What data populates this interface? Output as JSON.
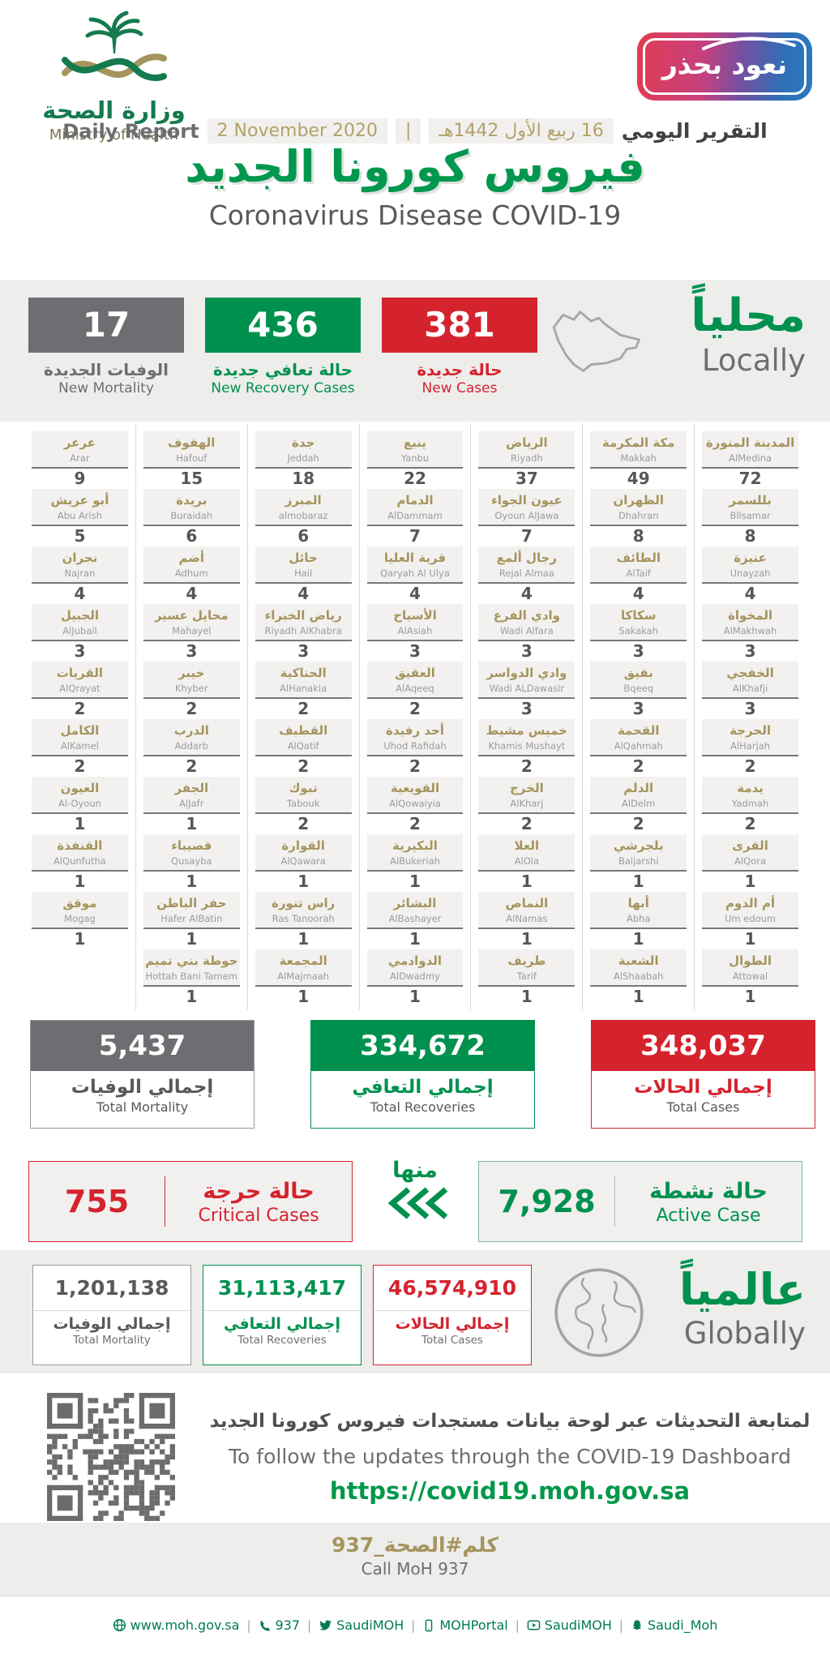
{
  "header": {
    "logo_ar": "وزارة الصحة",
    "logo_en": "Ministry of Health",
    "badge": "نعود بحذر",
    "report_label_en": "Daily Report",
    "date_gregorian": "2 November 2020",
    "date_separator": "|",
    "date_hijri": "16 ربيع الأول 1442هـ",
    "report_label_ar": "التقرير اليومي",
    "title_ar": "فيروس كورونا الجديد",
    "title_en": "Coronavirus Disease COVID-19"
  },
  "colors": {
    "green": "#00914F",
    "red": "#D5232E",
    "gray": "#6D6E71",
    "gold": "#A6945E"
  },
  "locally": {
    "label_ar": "محلياً",
    "label_en": "Locally",
    "new_mortality": {
      "value": "17",
      "label_ar": "الوفيات الجديدة",
      "label_en": "New Mortality"
    },
    "new_recoveries": {
      "value": "436",
      "label_ar": "حالة تعافي جديدة",
      "label_en": "New Recovery Cases"
    },
    "new_cases": {
      "value": "381",
      "label_ar": "حالة جديدة",
      "label_en": "New Cases"
    }
  },
  "cities_table": {
    "columns": [
      {
        "cities": [
          {
            "ar": "عرعر",
            "en": "Arar",
            "value": 9
          },
          {
            "ar": "أبو عريش",
            "en": "Abu Arish",
            "value": 5
          },
          {
            "ar": "نجران",
            "en": "Najran",
            "value": 4
          },
          {
            "ar": "الجبيل",
            "en": "AlJubail",
            "value": 3
          },
          {
            "ar": "القريات",
            "en": "AlQrayat",
            "value": 2
          },
          {
            "ar": "الكامل",
            "en": "AlKamel",
            "value": 2
          },
          {
            "ar": "العيون",
            "en": "Al-Oyoun",
            "value": 1
          },
          {
            "ar": "القنفذة",
            "en": "AlQunfutha",
            "value": 1
          },
          {
            "ar": "موقق",
            "en": "Mogag",
            "value": 1
          }
        ]
      },
      {
        "cities": [
          {
            "ar": "الهفوف",
            "en": "Hafouf",
            "value": 15
          },
          {
            "ar": "بريدة",
            "en": "Buraidah",
            "value": 6
          },
          {
            "ar": "أضم",
            "en": "Adhum",
            "value": 4
          },
          {
            "ar": "محايل عسير",
            "en": "Mahayel",
            "value": 3
          },
          {
            "ar": "خيبر",
            "en": "Khyber",
            "value": 2
          },
          {
            "ar": "الدرب",
            "en": "Addarb",
            "value": 2
          },
          {
            "ar": "الجفر",
            "en": "AlJafr",
            "value": 1
          },
          {
            "ar": "قصيباء",
            "en": "Qusayba",
            "value": 1
          },
          {
            "ar": "حفر الباطن",
            "en": "Hafer AlBatin",
            "value": 1
          },
          {
            "ar": "حوطة بني تميم",
            "en": "Hottah Bani Tamem",
            "value": 1
          }
        ]
      },
      {
        "cities": [
          {
            "ar": "جدة",
            "en": "Jeddah",
            "value": 18
          },
          {
            "ar": "المبرز",
            "en": "almobaraz",
            "value": 6
          },
          {
            "ar": "حائل",
            "en": "Hail",
            "value": 4
          },
          {
            "ar": "رياض الخبراء",
            "en": "Riyadh AlKhabra",
            "value": 3
          },
          {
            "ar": "الحناكية",
            "en": "AlHanakia",
            "value": 2
          },
          {
            "ar": "القطيف",
            "en": "AlQatif",
            "value": 2
          },
          {
            "ar": "تبوك",
            "en": "Tabouk",
            "value": 2
          },
          {
            "ar": "القوارة",
            "en": "AlQawara",
            "value": 1
          },
          {
            "ar": "راس تنورة",
            "en": "Ras Tanoorah",
            "value": 1
          },
          {
            "ar": "المجمعة",
            "en": "AlMajmaah",
            "value": 1
          }
        ]
      },
      {
        "cities": [
          {
            "ar": "ينبع",
            "en": "Yanbu",
            "value": 22
          },
          {
            "ar": "الدمام",
            "en": "AlDammam",
            "value": 7
          },
          {
            "ar": "قرية العليا",
            "en": "Qaryah Al Ulya",
            "value": 4
          },
          {
            "ar": "الأسياح",
            "en": "AlAsiah",
            "value": 3
          },
          {
            "ar": "العقيق",
            "en": "AlAqeeq",
            "value": 2
          },
          {
            "ar": "أحد رفيدة",
            "en": "Uhod Rafidah",
            "value": 2
          },
          {
            "ar": "القويعية",
            "en": "AlQowaiyia",
            "value": 2
          },
          {
            "ar": "البكيرية",
            "en": "AlBukeriah",
            "value": 1
          },
          {
            "ar": "البشائر",
            "en": "AlBashayer",
            "value": 1
          },
          {
            "ar": "الدوادمي",
            "en": "AlDwadmy",
            "value": 1
          }
        ]
      },
      {
        "cities": [
          {
            "ar": "الرياض",
            "en": "Riyadh",
            "value": 37
          },
          {
            "ar": "عيون الجواء",
            "en": "Oyoun AlJawa",
            "value": 7
          },
          {
            "ar": "رجال ألمع",
            "en": "Rejal Almaa",
            "value": 4
          },
          {
            "ar": "وادي الفرع",
            "en": "Wadi Alfara",
            "value": 3
          },
          {
            "ar": "وادي الدواسر",
            "en": "Wadi ALDawasir",
            "value": 3
          },
          {
            "ar": "خميس مشيط",
            "en": "Khamis Mushayt",
            "value": 2
          },
          {
            "ar": "الخرج",
            "en": "AlKharj",
            "value": 2
          },
          {
            "ar": "العلا",
            "en": "AlOla",
            "value": 1
          },
          {
            "ar": "النماص",
            "en": "AlNamas",
            "value": 1
          },
          {
            "ar": "طريف",
            "en": "Tarif",
            "value": 1
          }
        ]
      },
      {
        "cities": [
          {
            "ar": "مكة المكرمة",
            "en": "Makkah",
            "value": 49
          },
          {
            "ar": "الظهران",
            "en": "Dhahran",
            "value": 8
          },
          {
            "ar": "الطائف",
            "en": "AlTaif",
            "value": 4
          },
          {
            "ar": "سكاكا",
            "en": "Sakakah",
            "value": 3
          },
          {
            "ar": "بقيق",
            "en": "Bqeeq",
            "value": 3
          },
          {
            "ar": "القحمة",
            "en": "AlQahmah",
            "value": 2
          },
          {
            "ar": "الدلم",
            "en": "AlDelm",
            "value": 2
          },
          {
            "ar": "بلجرشي",
            "en": "Baljarshi",
            "value": 1
          },
          {
            "ar": "أبها",
            "en": "Abha",
            "value": 1
          },
          {
            "ar": "الشعبة",
            "en": "AlShaabah",
            "value": 1
          }
        ]
      },
      {
        "cities": [
          {
            "ar": "المدينة المنورة",
            "en": "AlMedina",
            "value": 72
          },
          {
            "ar": "بللسمر",
            "en": "Bllsamar",
            "value": 8
          },
          {
            "ar": "عنيزة",
            "en": "Unayzah",
            "value": 4
          },
          {
            "ar": "المخواة",
            "en": "AlMakhwah",
            "value": 3
          },
          {
            "ar": "الخفجي",
            "en": "AlKhafji",
            "value": 3
          },
          {
            "ar": "الحرجة",
            "en": "AlHarjah",
            "value": 2
          },
          {
            "ar": "يدمة",
            "en": "Yadmah",
            "value": 2
          },
          {
            "ar": "القرى",
            "en": "AlQora",
            "value": 1
          },
          {
            "ar": "أم الدوم",
            "en": "Um edoum",
            "value": 1
          },
          {
            "ar": "الطوال",
            "en": "Attowal",
            "value": 1
          }
        ]
      }
    ]
  },
  "totals": {
    "mortality": {
      "value": "5,437",
      "label_ar": "إجمالي الوفيات",
      "label_en": "Total Mortality"
    },
    "recoveries": {
      "value": "334,672",
      "label_ar": "إجمالي التعافي",
      "label_en": "Total Recoveries"
    },
    "cases": {
      "value": "348,037",
      "label_ar": "إجمالي الحالات",
      "label_en": "Total Cases"
    }
  },
  "active_critical": {
    "critical": {
      "value": "755",
      "label_ar": "حالة حرجة",
      "label_en": "Critical Cases"
    },
    "of_which_ar": "منها",
    "active": {
      "value": "7,928",
      "label_ar": "حالة نشطة",
      "label_en": "Active Case"
    }
  },
  "globally": {
    "label_ar": "عالمياً",
    "label_en": "Globally",
    "mortality": {
      "value": "1,201,138",
      "label_ar": "إجمالي الوفيات",
      "label_en": "Total Mortality"
    },
    "recoveries": {
      "value": "31,113,417",
      "label_ar": "إجمالي التعافي",
      "label_en": "Total Recoveries"
    },
    "cases": {
      "value": "46,574,910",
      "label_ar": "إجمالي الحالات",
      "label_en": "Total Cases"
    }
  },
  "dashboard": {
    "text_ar": "لمتابعة التحديثات عبر لوحة بيانات مستجدات فيروس كورونا الجديد",
    "text_en": "To follow the updates through the COVID-19 Dashboard",
    "url": "https://covid19.moh.gov.sa"
  },
  "contact": {
    "hashtag_ar": "كلم#الصحة_937",
    "call_en": "Call MoH 937"
  },
  "footer": {
    "separator": "|",
    "items": [
      {
        "icon": "globe-icon",
        "label": "www.moh.gov.sa"
      },
      {
        "icon": "phone-icon",
        "label": "937"
      },
      {
        "icon": "twitter-icon",
        "label": "SaudiMOH"
      },
      {
        "icon": "mobile-icon",
        "label": "MOHPortal"
      },
      {
        "icon": "tv-icon",
        "label": "SaudiMOH"
      },
      {
        "icon": "snapchat-icon",
        "label": "Saudi_Moh"
      }
    ]
  }
}
